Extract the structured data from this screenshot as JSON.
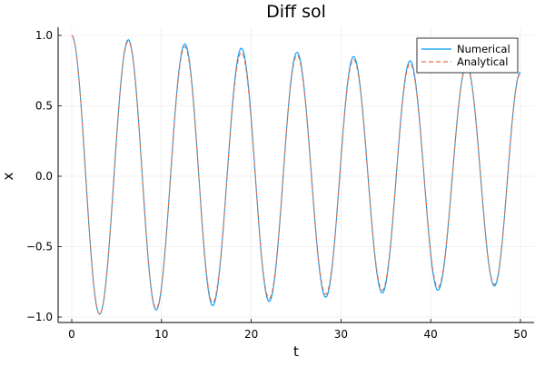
{
  "chart_data": {
    "type": "line",
    "title": "Diff sol",
    "xlabel": "t",
    "ylabel": "x",
    "xlim": [
      0,
      50
    ],
    "ylim": [
      -1.0,
      1.0
    ],
    "xticks": [
      0,
      10,
      20,
      30,
      40,
      50
    ],
    "xtick_labels": [
      "0",
      "10",
      "20",
      "30",
      "40",
      "50"
    ],
    "yticks": [
      -1.0,
      -0.5,
      0.0,
      0.5,
      1.0
    ],
    "ytick_labels": [
      "−1.0",
      "−0.5",
      "0.0",
      "0.5",
      "1.0"
    ],
    "grid": true,
    "legend_position": "top-right",
    "series": [
      {
        "name": "Numerical",
        "color": "#009AFA",
        "style": "solid",
        "x": [
          0,
          3.1,
          6.3,
          9.4,
          12.6,
          15.7,
          18.9,
          22.0,
          25.1,
          28.3,
          31.4,
          34.6,
          37.7,
          40.8,
          44.0,
          47.1,
          50.0
        ],
        "y": [
          1.0,
          -0.98,
          0.97,
          -0.95,
          0.94,
          -0.92,
          0.91,
          -0.89,
          0.88,
          -0.86,
          0.85,
          -0.83,
          0.82,
          -0.81,
          0.79,
          -0.78,
          0.74
        ]
      },
      {
        "name": "Analytical",
        "color": "#E36F47",
        "style": "dashed",
        "x": [
          0,
          3.1,
          6.3,
          9.4,
          12.6,
          15.7,
          18.9,
          22.0,
          25.1,
          28.3,
          31.4,
          34.6,
          37.7,
          40.8,
          44.0,
          47.1,
          50.0
        ],
        "y": [
          1.0,
          -0.98,
          0.96,
          -0.94,
          0.92,
          -0.9,
          0.88,
          -0.87,
          0.86,
          -0.84,
          0.83,
          -0.81,
          0.8,
          -0.79,
          0.78,
          -0.77,
          0.73
        ]
      }
    ]
  }
}
